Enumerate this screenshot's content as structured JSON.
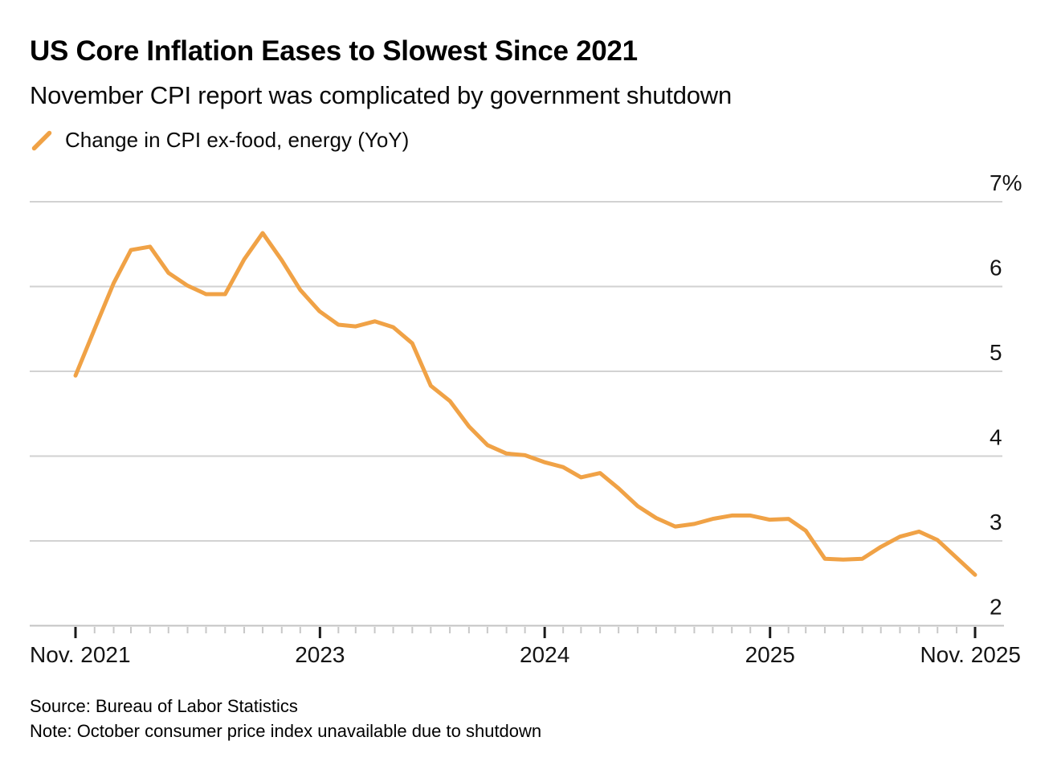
{
  "header": {
    "title": "US Core Inflation Eases to Slowest Since 2021",
    "subtitle": "November CPI report was complicated by government shutdown"
  },
  "legend": {
    "label": "Change in CPI ex-food, energy (YoY)",
    "color": "#F0A246"
  },
  "footer": {
    "source": "Source: Bureau of Labor Statistics",
    "note": "Note: October consumer price index unavailable due to shutdown"
  },
  "chart_data": {
    "type": "line",
    "title": "US Core Inflation Eases to Slowest Since 2021",
    "subtitle": "November CPI report was complicated by government shutdown",
    "series_name": "Change in CPI ex-food, energy (YoY)",
    "unit": "%",
    "line_color": "#F0A246",
    "grid": "horizontal",
    "legend_position": "top-left",
    "ylim": [
      2,
      7
    ],
    "y_ticks": [
      {
        "value": 7,
        "label": "7%"
      },
      {
        "value": 6,
        "label": "6"
      },
      {
        "value": 5,
        "label": "5"
      },
      {
        "value": 4,
        "label": "4"
      },
      {
        "value": 3,
        "label": "3"
      },
      {
        "value": 2,
        "label": "2"
      }
    ],
    "x_ticks": [
      {
        "date": "2021-11-30",
        "label": "Nov. 2021",
        "align": "left"
      },
      {
        "date": "2023-01-01",
        "label": "2023",
        "align": "center"
      },
      {
        "date": "2024-01-01",
        "label": "2024",
        "align": "center"
      },
      {
        "date": "2025-01-01",
        "label": "2025",
        "align": "center"
      },
      {
        "date": "2025-11-30",
        "label": "Nov. 2025",
        "align": "right"
      }
    ],
    "x": [
      "2021-11",
      "2021-12",
      "2022-01",
      "2022-02",
      "2022-03",
      "2022-04",
      "2022-05",
      "2022-06",
      "2022-07",
      "2022-08",
      "2022-09",
      "2022-10",
      "2022-11",
      "2022-12",
      "2023-01",
      "2023-02",
      "2023-03",
      "2023-04",
      "2023-05",
      "2023-06",
      "2023-07",
      "2023-08",
      "2023-09",
      "2023-10",
      "2023-11",
      "2023-12",
      "2024-01",
      "2024-02",
      "2024-03",
      "2024-04",
      "2024-05",
      "2024-06",
      "2024-07",
      "2024-08",
      "2024-09",
      "2024-10",
      "2024-11",
      "2024-12",
      "2025-01",
      "2025-02",
      "2025-03",
      "2025-04",
      "2025-05",
      "2025-06",
      "2025-07",
      "2025-08",
      "2025-09",
      "2025-10",
      "2025-11"
    ],
    "values": [
      4.95,
      5.5,
      6.04,
      6.43,
      6.47,
      6.16,
      6.01,
      5.91,
      5.91,
      6.32,
      6.63,
      6.31,
      5.96,
      5.71,
      5.55,
      5.53,
      5.59,
      5.52,
      5.33,
      4.83,
      4.65,
      4.35,
      4.13,
      4.03,
      4.01,
      3.93,
      3.87,
      3.75,
      3.8,
      3.62,
      3.41,
      3.27,
      3.17,
      3.2,
      3.26,
      3.3,
      3.3,
      3.25,
      3.26,
      3.12,
      2.79,
      2.78,
      2.79,
      2.93,
      3.05,
      3.11,
      3.01,
      null,
      2.6
    ]
  }
}
